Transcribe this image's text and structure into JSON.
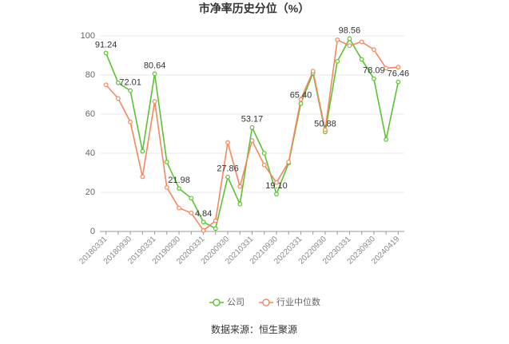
{
  "chart_data": {
    "type": "line",
    "title": "市净率历史分位（%）",
    "source": "数据来源：恒生聚源",
    "categories": [
      "20180331",
      null,
      "20180930",
      null,
      "20190331",
      null,
      "20190930",
      null,
      "20200331",
      null,
      "20200930",
      null,
      "20210331",
      null,
      "20210930",
      null,
      "20220331",
      null,
      "20220930",
      null,
      "20230331",
      null,
      "20230930",
      null,
      "20240419"
    ],
    "ylim": [
      0,
      100
    ],
    "yticks": [
      0,
      20,
      40,
      60,
      80,
      100
    ],
    "grid": true,
    "legend": "bottom",
    "series": [
      {
        "name": "公司",
        "color": "#5bc234",
        "values": [
          91.24,
          76,
          72.01,
          41,
          80.64,
          35.5,
          21.98,
          17,
          4.84,
          1.5,
          27.86,
          14,
          53.17,
          40,
          19.1,
          35,
          65.4,
          81,
          50.88,
          87,
          98.56,
          88,
          78.09,
          47,
          76.46
        ],
        "labels": [
          "91.24",
          null,
          "72.01",
          null,
          "80.64",
          null,
          "21.98",
          null,
          "4.84",
          null,
          "27.86",
          null,
          "53.17",
          null,
          "19.10",
          null,
          "65.40",
          null,
          "50.88",
          null,
          "98.56",
          null,
          "78.09",
          null,
          "76.46"
        ]
      },
      {
        "name": "行业中位数",
        "color": "#f4875e",
        "values": [
          75,
          68,
          56,
          28,
          66.5,
          22.5,
          12,
          9.5,
          0.5,
          5.5,
          45.5,
          23,
          46.5,
          34,
          25,
          35.5,
          67.5,
          82,
          52,
          98,
          95,
          97,
          93,
          83.5,
          84
        ]
      }
    ]
  }
}
